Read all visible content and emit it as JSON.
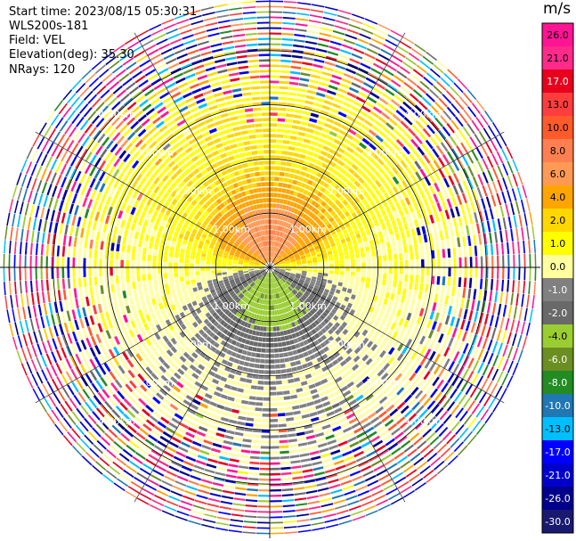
{
  "header": {
    "start_time": "Start time: 2023/08/15 05:30:31",
    "instrument": "WLS200s-181",
    "field": "Field: VEL",
    "elevation": "Elevation(deg): 35.30",
    "nrays": "NRays: 120"
  },
  "chart_data": {
    "type": "polar-ppi",
    "field": "VEL",
    "unit": "m/s",
    "elevation_deg": 35.3,
    "n_rays": 120,
    "range_rings_km": [
      1.0,
      2.0,
      3.0,
      4.0
    ],
    "ring_labels": [
      "1.00km",
      "2.00km",
      "3.00km",
      "4.00km"
    ],
    "max_range_km": 5.0,
    "colorbar": {
      "title": "m/s",
      "ticks": [
        "26.0",
        "21.0",
        "17.0",
        "13.0",
        "10.0",
        "8.0",
        "6.0",
        "4.0",
        "2.0",
        "1.0",
        "0.0",
        "-1.0",
        "-2.0",
        "-4.0",
        "-6.0",
        "-8.0",
        "-10.0",
        "-13.0",
        "-17.0",
        "-21.0",
        "-26.0",
        "-30.0"
      ],
      "colors": [
        "#ff1493",
        "#ff2a8a",
        "#e8001c",
        "#ff3d3d",
        "#ff5a2a",
        "#ff7f50",
        "#ff9a55",
        "#ffa500",
        "#ffd700",
        "#ffff00",
        "#ffffa0",
        "#808080",
        "#696969",
        "#9acd32",
        "#6b8e23",
        "#228b22",
        "#1f77b4",
        "#00bfff",
        "#0000ff",
        "#0000cd",
        "#00008b",
        "#191970"
      ]
    },
    "velocity_structure": {
      "toward_north": "positive (1 to 6 m/s, peak ~5 m/s near 0.5 km)",
      "toward_south": "negative (-1 to -6 m/s, peak ~-5 m/s near 0.6 km)",
      "zero_band": "east-west"
    }
  }
}
